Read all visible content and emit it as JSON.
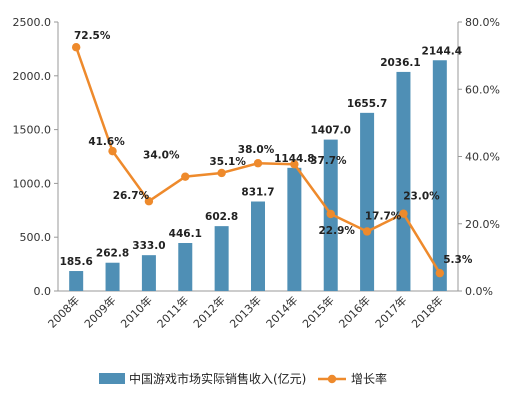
{
  "chart_data": {
    "type": "bar",
    "categories": [
      "2008年",
      "2009年",
      "2010年",
      "2011年",
      "2012年",
      "2013年",
      "2014年",
      "2015年",
      "2016年",
      "2017年",
      "2018年"
    ],
    "series": [
      {
        "name": "中国游戏市场实际销售收入(亿元)",
        "type": "bar",
        "axis": "left",
        "values": [
          185.6,
          262.8,
          333.0,
          446.1,
          602.8,
          831.7,
          1144.8,
          1407.0,
          1655.7,
          2036.1,
          2144.4
        ],
        "labels": [
          "185.6",
          "262.8",
          "333.0",
          "446.1",
          "602.8",
          "831.7",
          "1144.8",
          "1407.0",
          "1655.7",
          "2036.1",
          "2144.4"
        ]
      },
      {
        "name": "增长率",
        "type": "line",
        "axis": "right",
        "values": [
          72.5,
          41.6,
          26.7,
          34.0,
          35.1,
          38.0,
          37.7,
          22.9,
          17.7,
          23.0,
          5.3
        ],
        "labels": [
          "72.5%",
          "41.6%",
          "26.7%",
          "34.0%",
          "35.1%",
          "38.0%",
          "37.7%",
          "22.9%",
          "17.7%",
          "23.0%",
          "5.3%"
        ]
      }
    ],
    "ylim": [
      0,
      2500
    ],
    "y_ticks": [
      "0.0",
      "500.0",
      "1000.0",
      "1500.0",
      "2000.0",
      "2500.0"
    ],
    "y2lim": [
      0,
      80
    ],
    "y2_ticks": [
      "0.0%",
      "20.0%",
      "40.0%",
      "60.0%",
      "80.0%"
    ],
    "legend": "bottom",
    "grid": false,
    "colors": {
      "bar": "#4f8fb5",
      "line": "#ee8a2c",
      "axis": "#999999"
    }
  }
}
